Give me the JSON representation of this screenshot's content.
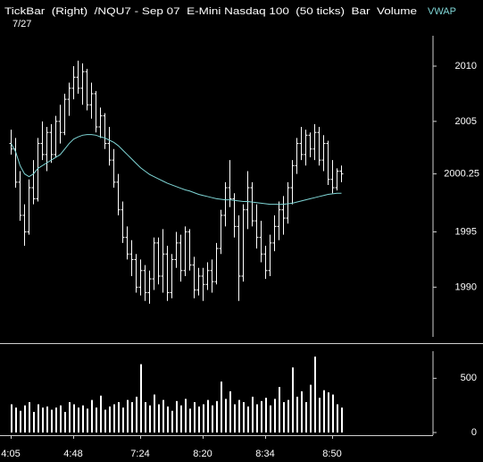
{
  "chart_data": [
    {
      "type": "ohlc",
      "title": "TickBar  (Right)  /NQU7 - Sep 07  E-Mini Nasdaq 100  (50 ticks)  Bar  Volume",
      "subtitle": "7/27",
      "color": "#ffffff",
      "open": [
        2003,
        2002.5,
        1999.5,
        1996.5,
        1995,
        1999,
        1998,
        2003,
        2002,
        2004,
        2002,
        2005,
        2004,
        2007,
        2008,
        2009,
        2008,
        2009.5,
        2006.5,
        2007.5,
        2004.5,
        2005.5,
        2003,
        2001.5,
        1999.5,
        1997,
        1994.5,
        1993,
        1992.5,
        1990,
        1991.5,
        1989.5,
        1990.75,
        1994,
        1991,
        1993,
        1989.5,
        1992.5,
        1994,
        1991.5,
        1995,
        1992,
        1989.75,
        1991,
        1990.25,
        1991.5,
        1990.5,
        1993.5,
        1996.5,
        1999,
        1998,
        1995.5,
        1991,
        1997,
        1999,
        1996,
        1994.5,
        1993,
        1991.5,
        1994,
        1995.5,
        1997,
        1996.25,
        1999,
        2001,
        2003,
        2002,
        2003.75,
        2002.5,
        2004,
        2001.5,
        2003,
        1999.75,
        1999,
        2000.5
      ],
      "high": [
        2004.25,
        2003.5,
        2000.5,
        1997.5,
        1999.75,
        2001.5,
        2003.5,
        2005,
        2004.5,
        2004.75,
        2005.5,
        2006.5,
        2007.5,
        2008.5,
        2010,
        2010.5,
        2010.25,
        2009.75,
        2008.5,
        2007.75,
        2006.25,
        2005.75,
        2004.5,
        2002.5,
        2000.25,
        1997.75,
        1995.5,
        1994.25,
        1993,
        1992.5,
        1992,
        1991.5,
        1994.5,
        1994.5,
        1995.25,
        1993.75,
        1993,
        1995,
        1994.75,
        1995.5,
        1995.25,
        1992.75,
        1991.75,
        1991.75,
        1992.25,
        1992.5,
        1994,
        1997,
        1999.5,
        2001.5,
        1998.5,
        1996.5,
        1997.5,
        2000.5,
        1999.5,
        1997.5,
        1996,
        1993.75,
        1994.75,
        1996.5,
        1997.75,
        1998.25,
        1999.5,
        2001.5,
        2003.5,
        2004.5,
        2004.25,
        2004,
        2004.75,
        2004.5,
        2003.75,
        2003.25,
        2001.5,
        2000.75,
        2001
      ],
      "low": [
        2002,
        1999,
        1996,
        1993.75,
        1994.75,
        1997.5,
        1997.75,
        2001.5,
        2000.5,
        2001.25,
        2001.75,
        2003,
        2003.75,
        2005.5,
        2007,
        2007.5,
        2006.5,
        2006,
        2005.25,
        2004,
        2003.5,
        2002.5,
        2001,
        1999,
        1996.5,
        1994,
        1992.5,
        1991,
        1989.5,
        1989.25,
        1988.75,
        1988.5,
        1989.75,
        1990.25,
        1989.5,
        1988.75,
        1989,
        1991.75,
        1990.5,
        1991,
        1991.5,
        1989,
        1989.25,
        1988.75,
        1989.75,
        1989.5,
        1990.25,
        1993,
        1995.5,
        1997.25,
        1994.5,
        1988.75,
        1990.5,
        1995.25,
        1995.5,
        1993.5,
        1992.25,
        1990.75,
        1991,
        1993.25,
        1994.25,
        1994.75,
        1995.75,
        1997.5,
        2000.25,
        2001.5,
        2001,
        2001.75,
        2001.5,
        2001,
        2000.5,
        1999.25,
        1998.5,
        1998.75,
        1999.5
      ],
      "close": [
        2002.5,
        1999.5,
        1996.5,
        1995,
        1999,
        1998,
        2003,
        2002,
        2004,
        2002,
        2005,
        2004,
        2007,
        2008,
        2009,
        2008,
        2009.5,
        2006.5,
        2007.5,
        2004.5,
        2005.5,
        2003,
        2001.5,
        1999.5,
        1997,
        1994.5,
        1993,
        1992.5,
        1990,
        1991.5,
        1989.5,
        1990.75,
        1994,
        1991,
        1993,
        1989.5,
        1992.5,
        1994,
        1991.5,
        1995,
        1992,
        1989.75,
        1991,
        1990.25,
        1991.5,
        1990.5,
        1993.5,
        1996.5,
        1999,
        1998,
        1995.5,
        1991,
        1997,
        1999,
        1996,
        1994.5,
        1993,
        1991.5,
        1994,
        1995.5,
        1997,
        1996.25,
        1999,
        2001,
        2003,
        2002,
        2003.75,
        2002.5,
        2004,
        2001.5,
        2003,
        1999.75,
        1999,
        2000.5,
        2000.25
      ],
      "series": [
        {
          "name": "VWAP",
          "color": "#7fd6d6",
          "values": [
            2003,
            2002.25,
            2001,
            2000.25,
            2000,
            2000.25,
            2000.75,
            2001,
            2001.25,
            2001.5,
            2001.75,
            2002,
            2002.5,
            2003,
            2003.4,
            2003.6,
            2003.75,
            2003.8,
            2003.8,
            2003.75,
            2003.6,
            2003.5,
            2003.3,
            2003.1,
            2002.8,
            2002.4,
            2002,
            2001.6,
            2001.2,
            2000.8,
            2000.5,
            2000.2,
            2000,
            1999.8,
            1999.6,
            1999.4,
            1999.25,
            1999.1,
            1998.95,
            1998.8,
            1998.7,
            1998.55,
            1998.4,
            1998.3,
            1998.2,
            1998.1,
            1998,
            1997.95,
            1997.9,
            1997.9,
            1997.85,
            1997.8,
            1997.75,
            1997.75,
            1997.7,
            1997.65,
            1997.6,
            1997.55,
            1997.5,
            1997.5,
            1997.5,
            1997.5,
            1997.55,
            1997.6,
            1997.7,
            1997.8,
            1997.9,
            1998,
            1998.1,
            1998.2,
            1998.3,
            1998.4,
            1998.45,
            1998.5,
            1998.5
          ]
        }
      ],
      "last_price": 2000.25,
      "ylim": [
        1985.5,
        2012.75
      ],
      "yticks": [
        1990,
        1995,
        2005,
        2010
      ]
    },
    {
      "type": "bar",
      "color": "#ffffff",
      "categories": [
        "4:05",
        null,
        null,
        null,
        null,
        null,
        null,
        null,
        null,
        null,
        null,
        null,
        null,
        null,
        "4:48",
        null,
        null,
        null,
        null,
        null,
        null,
        null,
        null,
        null,
        null,
        null,
        null,
        null,
        null,
        "7:24",
        null,
        null,
        null,
        null,
        null,
        null,
        null,
        null,
        null,
        null,
        null,
        null,
        null,
        "8:20",
        null,
        null,
        null,
        null,
        null,
        null,
        null,
        null,
        null,
        null,
        null,
        null,
        null,
        "8:34",
        null,
        null,
        null,
        null,
        null,
        null,
        null,
        null,
        null,
        null,
        null,
        null,
        null,
        null,
        "8:50",
        null,
        null
      ],
      "values": [
        260,
        230,
        200,
        250,
        280,
        190,
        260,
        230,
        240,
        210,
        230,
        250,
        190,
        280,
        260,
        230,
        250,
        220,
        300,
        230,
        340,
        210,
        240,
        260,
        280,
        230,
        300,
        280,
        330,
        630,
        280,
        250,
        350,
        260,
        300,
        240,
        200,
        290,
        250,
        310,
        220,
        280,
        240,
        260,
        300,
        250,
        290,
        470,
        310,
        380,
        260,
        300,
        280,
        240,
        330,
        260,
        290,
        320,
        250,
        310,
        420,
        280,
        300,
        600,
        330,
        380,
        280,
        440,
        700,
        320,
        390,
        370,
        350,
        260,
        230
      ],
      "ylim": [
        0,
        750
      ],
      "yticks": [
        0,
        500
      ]
    }
  ]
}
